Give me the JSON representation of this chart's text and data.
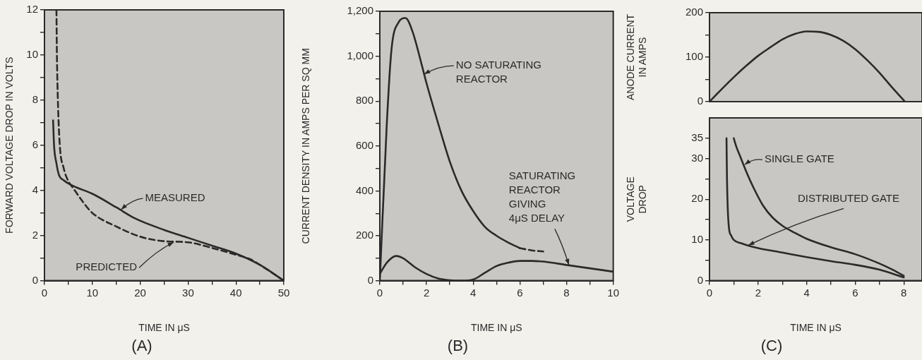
{
  "chart_data": [
    {
      "type": "line",
      "title": "(A)",
      "xlabel": "TIME IN μS",
      "ylabel": "FORWARD VOLTAGE DROP IN VOLTS",
      "xlim": [
        0,
        50
      ],
      "ylim": [
        0,
        12
      ],
      "xticks": [
        0,
        {
          "value": 5,
          "label": null
        },
        10,
        {
          "value": 15,
          "label": null
        },
        20,
        {
          "value": 25,
          "label": null
        },
        30,
        {
          "value": 35,
          "label": null
        },
        40,
        {
          "value": 45,
          "label": null
        },
        50
      ],
      "yticks": [
        0,
        {
          "value": 1,
          "label": null
        },
        2,
        {
          "value": 3,
          "label": null
        },
        4,
        {
          "value": 5,
          "label": null
        },
        6,
        {
          "value": 7,
          "label": null
        },
        8,
        {
          "value": 9,
          "label": null
        },
        10,
        {
          "value": 11,
          "label": null
        },
        12
      ],
      "grid": false,
      "legend": false,
      "marker": "none",
      "series": [
        {
          "color": "#2a2a2a",
          "line_style": "solid",
          "x": [
            1.8,
            2,
            2.5,
            3,
            4,
            6,
            10,
            15,
            19,
            25,
            30,
            35,
            40,
            45,
            50
          ],
          "values": [
            7.1,
            6,
            5.2,
            4.7,
            4.45,
            4.2,
            3.85,
            3.25,
            2.75,
            2.25,
            1.9,
            1.55,
            1.2,
            0.7,
            0
          ]
        },
        {
          "color": "#2a2a2a",
          "line_style": "dashed",
          "x": [
            2.5,
            2.6,
            2.8,
            3.2,
            4,
            5,
            6,
            8,
            10,
            15,
            20,
            25,
            30,
            35,
            40,
            43,
            45,
            50
          ],
          "values": [
            12,
            10,
            8,
            6,
            5,
            4.4,
            4.1,
            3.5,
            3,
            2.4,
            1.95,
            1.75,
            1.7,
            1.45,
            1.15,
            0.95,
            0.7,
            0
          ]
        }
      ],
      "annotations": [
        {
          "text": "MEASURED",
          "x": 16,
          "y": 3.15
        },
        {
          "text": "PREDICTED",
          "x": 27,
          "y": 1.7
        }
      ]
    },
    {
      "type": "line",
      "title": "(B)",
      "xlabel": "TIME IN μS",
      "ylabel": "CURRENT DENSITY IN AMPS PER SQ MM",
      "xlim": [
        0,
        10
      ],
      "ylim": [
        0,
        1200
      ],
      "xticks": [
        0,
        {
          "value": 1,
          "label": null
        },
        2,
        {
          "value": 3,
          "label": null
        },
        4,
        {
          "value": 5,
          "label": null
        },
        6,
        {
          "value": 7,
          "label": null
        },
        8,
        {
          "value": 9,
          "label": null
        },
        10
      ],
      "yticks": [
        0,
        {
          "value": 100,
          "label": null
        },
        200,
        {
          "value": 300,
          "label": null
        },
        400,
        {
          "value": 500,
          "label": null
        },
        600,
        {
          "value": 700,
          "label": null
        },
        800,
        {
          "value": 900,
          "label": null
        },
        {
          "value": 1000,
          "label": "1,000"
        },
        {
          "value": 1100,
          "label": null
        },
        {
          "value": 1200,
          "label": "1,200"
        }
      ],
      "grid": false,
      "legend": false,
      "marker": "none",
      "series": [
        {
          "color": "#2a2a2a",
          "line_style": "solid",
          "x": [
            0,
            0.3,
            0.5,
            0.8,
            1.1,
            1.4,
            1.8,
            2,
            2.5,
            3,
            3.5,
            4,
            4.5,
            5,
            5.5,
            6
          ],
          "values": [
            0,
            700,
            1030,
            1150,
            1170,
            1110,
            960,
            880,
            700,
            530,
            400,
            310,
            240,
            200,
            170,
            145
          ]
        },
        {
          "color": "#2a2a2a",
          "line_style": "dashed",
          "x": [
            6,
            6.5,
            7
          ],
          "values": [
            145,
            135,
            130
          ]
        },
        {
          "color": "#2a2a2a",
          "line_style": "solid",
          "x": [
            0,
            0.3,
            0.7,
            1,
            1.5,
            2,
            2.5,
            3,
            3.5,
            4,
            4.5,
            5,
            5.5,
            6,
            6.5,
            7,
            8,
            9,
            10
          ],
          "values": [
            30,
            80,
            110,
            100,
            60,
            30,
            10,
            2,
            0,
            5,
            35,
            65,
            80,
            88,
            88,
            85,
            70,
            55,
            40
          ]
        }
      ],
      "annotations": [
        {
          "text": "NO SATURATING\nREACTOR",
          "x": 1.9,
          "y": 920
        },
        {
          "text": "SATURATING\nREACTOR\nGIVING\n4μS DELAY",
          "x": 8.1,
          "y": 70
        }
      ]
    },
    {
      "type": "line",
      "ylabel": "ANODE CURRENT\nIN AMPS",
      "xlim": [
        0,
        8.75
      ],
      "ylim": [
        0,
        200
      ],
      "tick_labels": "y",
      "yticks": [
        0,
        {
          "value": 50,
          "label": null
        },
        100,
        {
          "value": 150,
          "label": null
        },
        200
      ],
      "grid": false,
      "legend": false,
      "marker": "none",
      "series": [
        {
          "color": "#2a2a2a",
          "line_style": "solid",
          "x": [
            0,
            0.5,
            1,
            1.5,
            2,
            2.5,
            3,
            3.5,
            4,
            4.5,
            5,
            5.5,
            6,
            6.5,
            7,
            7.5,
            8.05
          ],
          "values": [
            0,
            28,
            55,
            80,
            103,
            122,
            140,
            152,
            158,
            157,
            150,
            137,
            118,
            93,
            65,
            33,
            0
          ]
        }
      ]
    },
    {
      "type": "line",
      "title": "(C)",
      "xlabel": "TIME IN μS",
      "ylabel": "VOLTAGE\nDROP",
      "xlim": [
        0,
        8.75
      ],
      "ylim": [
        0,
        40
      ],
      "xticks": [
        0,
        {
          "value": 1,
          "label": null
        },
        2,
        {
          "value": 3,
          "label": null
        },
        4,
        {
          "value": 5,
          "label": null
        },
        6,
        {
          "value": 7,
          "label": null
        },
        8
      ],
      "yticks": [
        0,
        {
          "value": 5,
          "label": null
        },
        10,
        {
          "value": 15,
          "label": null
        },
        20,
        {
          "value": 25,
          "label": null
        },
        30,
        35
      ],
      "grid": false,
      "legend": false,
      "marker": "none",
      "series": [
        {
          "color": "#2a2a2a",
          "line_style": "solid",
          "x": [
            1,
            1.1,
            1.3,
            1.5,
            1.8,
            2.2,
            2.6,
            3,
            3.5,
            4,
            5,
            6,
            7,
            7.5,
            8
          ],
          "values": [
            35,
            33,
            30,
            27,
            23,
            18.5,
            15.5,
            13.5,
            11.8,
            10.3,
            8.2,
            6.5,
            4.2,
            2.8,
            1.2
          ]
        },
        {
          "color": "#2a2a2a",
          "line_style": "solid",
          "x": [
            0.7,
            0.72,
            0.75,
            0.8,
            0.9,
            1,
            1.3,
            1.6,
            2,
            3,
            4,
            5,
            6,
            7,
            8
          ],
          "values": [
            35,
            25,
            18,
            13,
            11,
            10,
            9.2,
            8.6,
            8,
            6.9,
            5.8,
            4.8,
            3.9,
            2.7,
            0.8
          ]
        }
      ],
      "annotations": [
        {
          "text": "SINGLE GATE",
          "x": 1.45,
          "y": 28.5
        },
        {
          "text": "DISTRIBUTED GATE",
          "x": 1.6,
          "y": 8.7
        }
      ]
    }
  ]
}
